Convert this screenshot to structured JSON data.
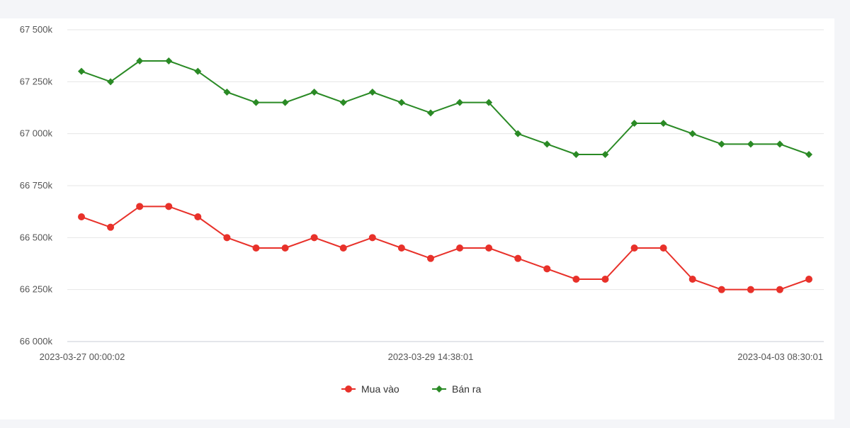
{
  "chart_data": {
    "type": "line",
    "title": "",
    "xlabel": "",
    "ylabel": "",
    "ylim": [
      66000,
      67500
    ],
    "y_ticks": [
      "67 500k",
      "67 250k",
      "67 000k",
      "66 750k",
      "66 500k",
      "66 250k",
      "66 000k"
    ],
    "y_tick_values": [
      67500,
      67250,
      67000,
      66750,
      66500,
      66250,
      66000
    ],
    "x_tick_labels": [
      {
        "index": 0,
        "label": "2023-03-27 00:00:02"
      },
      {
        "index": 12,
        "label": "2023-03-29 14:38:01"
      },
      {
        "index": 25,
        "label": "2023-04-03 08:30:01"
      }
    ],
    "point_count": 26,
    "grid": true,
    "legend_position": "bottom-center",
    "series": [
      {
        "name": "Mua vào",
        "color": "#e8312a",
        "marker": "circle",
        "values": [
          66600,
          66550,
          66650,
          66650,
          66600,
          66500,
          66450,
          66450,
          66500,
          66450,
          66500,
          66450,
          66400,
          66450,
          66450,
          66400,
          66350,
          66300,
          66300,
          66450,
          66450,
          66300,
          66250,
          66250,
          66250,
          66300
        ]
      },
      {
        "name": "Bán ra",
        "color": "#2a8a25",
        "marker": "diamond",
        "values": [
          67300,
          67250,
          67350,
          67350,
          67300,
          67200,
          67150,
          67150,
          67200,
          67150,
          67200,
          67150,
          67100,
          67150,
          67150,
          67000,
          66950,
          66900,
          66900,
          67050,
          67050,
          67000,
          66950,
          66950,
          66950,
          66900
        ]
      }
    ]
  }
}
